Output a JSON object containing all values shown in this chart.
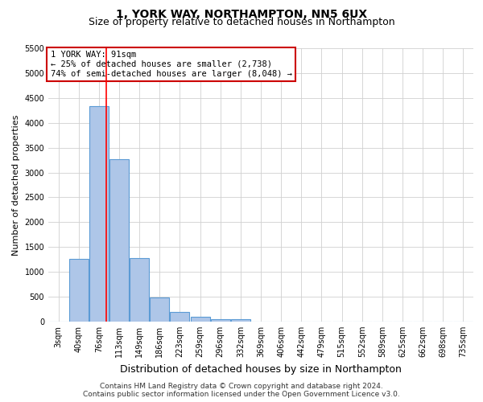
{
  "title": "1, YORK WAY, NORTHAMPTON, NN5 6UX",
  "subtitle": "Size of property relative to detached houses in Northampton",
  "xlabel": "Distribution of detached houses by size in Northampton",
  "ylabel": "Number of detached properties",
  "categories": [
    "3sqm",
    "40sqm",
    "76sqm",
    "113sqm",
    "149sqm",
    "186sqm",
    "223sqm",
    "259sqm",
    "296sqm",
    "332sqm",
    "369sqm",
    "406sqm",
    "442sqm",
    "479sqm",
    "515sqm",
    "552sqm",
    "589sqm",
    "625sqm",
    "662sqm",
    "698sqm",
    "735sqm"
  ],
  "bar_values": [
    0,
    1260,
    4330,
    3270,
    1280,
    480,
    195,
    90,
    55,
    50,
    0,
    0,
    0,
    0,
    0,
    0,
    0,
    0,
    0,
    0,
    0
  ],
  "bar_color": "#aec6e8",
  "bar_edge_color": "#5b9bd5",
  "bar_edge_width": 0.8,
  "red_line_x": 2.35,
  "ylim": [
    0,
    5500
  ],
  "yticks": [
    0,
    500,
    1000,
    1500,
    2000,
    2500,
    3000,
    3500,
    4000,
    4500,
    5000,
    5500
  ],
  "annotation_text": "1 YORK WAY: 91sqm\n← 25% of detached houses are smaller (2,738)\n74% of semi-detached houses are larger (8,048) →",
  "annotation_box_color": "#ffffff",
  "annotation_box_edge_color": "#cc0000",
  "grid_color": "#d0d0d0",
  "background_color": "#ffffff",
  "footer_text": "Contains HM Land Registry data © Crown copyright and database right 2024.\nContains public sector information licensed under the Open Government Licence v3.0.",
  "title_fontsize": 10,
  "subtitle_fontsize": 9,
  "xlabel_fontsize": 9,
  "ylabel_fontsize": 8,
  "tick_fontsize": 7,
  "annotation_fontsize": 7.5,
  "footer_fontsize": 6.5
}
